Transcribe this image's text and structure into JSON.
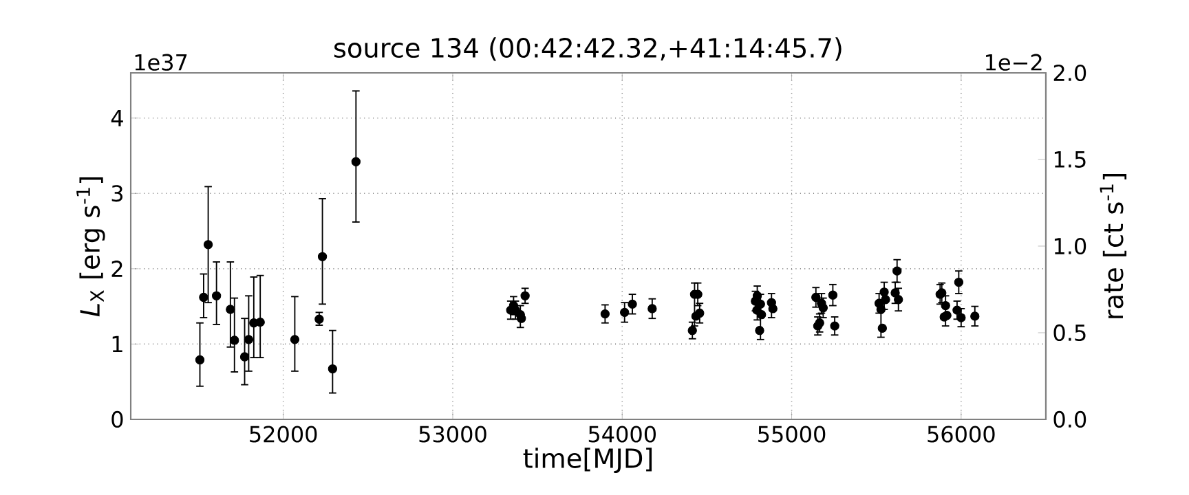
{
  "chart_data": {
    "type": "scatter",
    "title": "source 134    (00:42:42.32,+41:14:45.7)",
    "xlabel": "time[MJD]",
    "ylabel": "*L*$_{X}$ [erg s$^{-1}$]",
    "y2label": "rate [ct s$^{-1}$]",
    "annotations": [
      "1e37",
      "1e−2"
    ],
    "xlim": [
      51100,
      56500
    ],
    "xticks": [
      52000,
      53000,
      54000,
      55000,
      56000
    ],
    "ylim": [
      0,
      4.6
    ],
    "yticks": [
      0,
      1,
      2,
      3,
      4
    ],
    "y2lim": [
      0,
      2.0
    ],
    "y2ticks": [
      {
        "value": 0,
        "label": "0.0"
      },
      {
        "value": 0.5,
        "label": "0.5"
      },
      {
        "value": 1.0,
        "label": "1.0"
      },
      {
        "value": 1.5,
        "label": "1.5"
      },
      {
        "value": 2.0,
        "label": "2.0"
      }
    ],
    "grid": true,
    "marker": "circle",
    "series": [
      {
        "color": "#000000",
        "x": [
          51508,
          51530,
          51557,
          51606,
          51688,
          51712,
          51772,
          51796,
          51826,
          51864,
          52068,
          52212,
          52231,
          52291,
          52429,
          53342,
          53359,
          53370,
          53399,
          53405,
          53427,
          53899,
          54014,
          54060,
          54177,
          54414,
          54427,
          54446,
          54435,
          54457,
          54786,
          54797,
          54795,
          54816,
          54822,
          54811,
          54881,
          54889,
          55143,
          55176,
          55186,
          55154,
          55165,
          55243,
          55254,
          55516,
          55527,
          55535,
          55546,
          55554,
          55611,
          55622,
          55630,
          55876,
          55886,
          55908,
          55900,
          55916,
          55986,
          55976,
          56000,
          56081
        ],
        "values": [
          0.79,
          1.62,
          2.32,
          1.64,
          1.46,
          1.05,
          0.83,
          1.06,
          1.28,
          1.29,
          1.06,
          1.33,
          2.16,
          0.67,
          3.42,
          1.45,
          1.51,
          1.45,
          1.39,
          1.34,
          1.64,
          1.4,
          1.42,
          1.53,
          1.47,
          1.18,
          1.66,
          1.66,
          1.37,
          1.41,
          1.57,
          1.64,
          1.45,
          1.53,
          1.39,
          1.18,
          1.55,
          1.47,
          1.62,
          1.54,
          1.48,
          1.24,
          1.28,
          1.65,
          1.24,
          1.54,
          1.46,
          1.21,
          1.69,
          1.59,
          1.68,
          1.97,
          1.59,
          1.66,
          1.68,
          1.51,
          1.36,
          1.38,
          1.82,
          1.45,
          1.35,
          1.37
        ],
        "errors": [
          [
            0.44,
            1.28
          ],
          [
            1.35,
            1.93
          ],
          [
            1.55,
            3.09
          ],
          [
            1.26,
            2.09
          ],
          [
            0.96,
            2.09
          ],
          [
            0.63,
            1.61
          ],
          [
            0.46,
            1.34
          ],
          [
            0.64,
            1.64
          ],
          [
            0.82,
            1.89
          ],
          [
            0.82,
            1.91
          ],
          [
            0.64,
            1.63
          ],
          [
            1.25,
            1.42
          ],
          [
            1.53,
            2.93
          ],
          [
            0.35,
            1.18
          ],
          [
            2.62,
            4.36
          ],
          0.12,
          0.12,
          0.12,
          [
            1.22,
            1.51
          ],
          null,
          0.1,
          0.12,
          0.13,
          0.13,
          0.13,
          0.11,
          [
            1.24,
            1.81
          ],
          0.15,
          null,
          0.13,
          0.13,
          [
            1.32,
            1.77
          ],
          null,
          [
            1.06,
            1.66
          ],
          null,
          null,
          [
            1.35,
            1.67
          ],
          null,
          0.13,
          0.13,
          0.13,
          0.12,
          0.12,
          0.14,
          0.12,
          0.13,
          [
            1.09,
            1.59
          ],
          null,
          [
            1.46,
            1.82
          ],
          null,
          0.14,
          0.15,
          0.15,
          0.13,
          0.13,
          [
            1.24,
            1.64
          ],
          null,
          null,
          0.15,
          0.12,
          0.12,
          0.13
        ]
      }
    ]
  }
}
